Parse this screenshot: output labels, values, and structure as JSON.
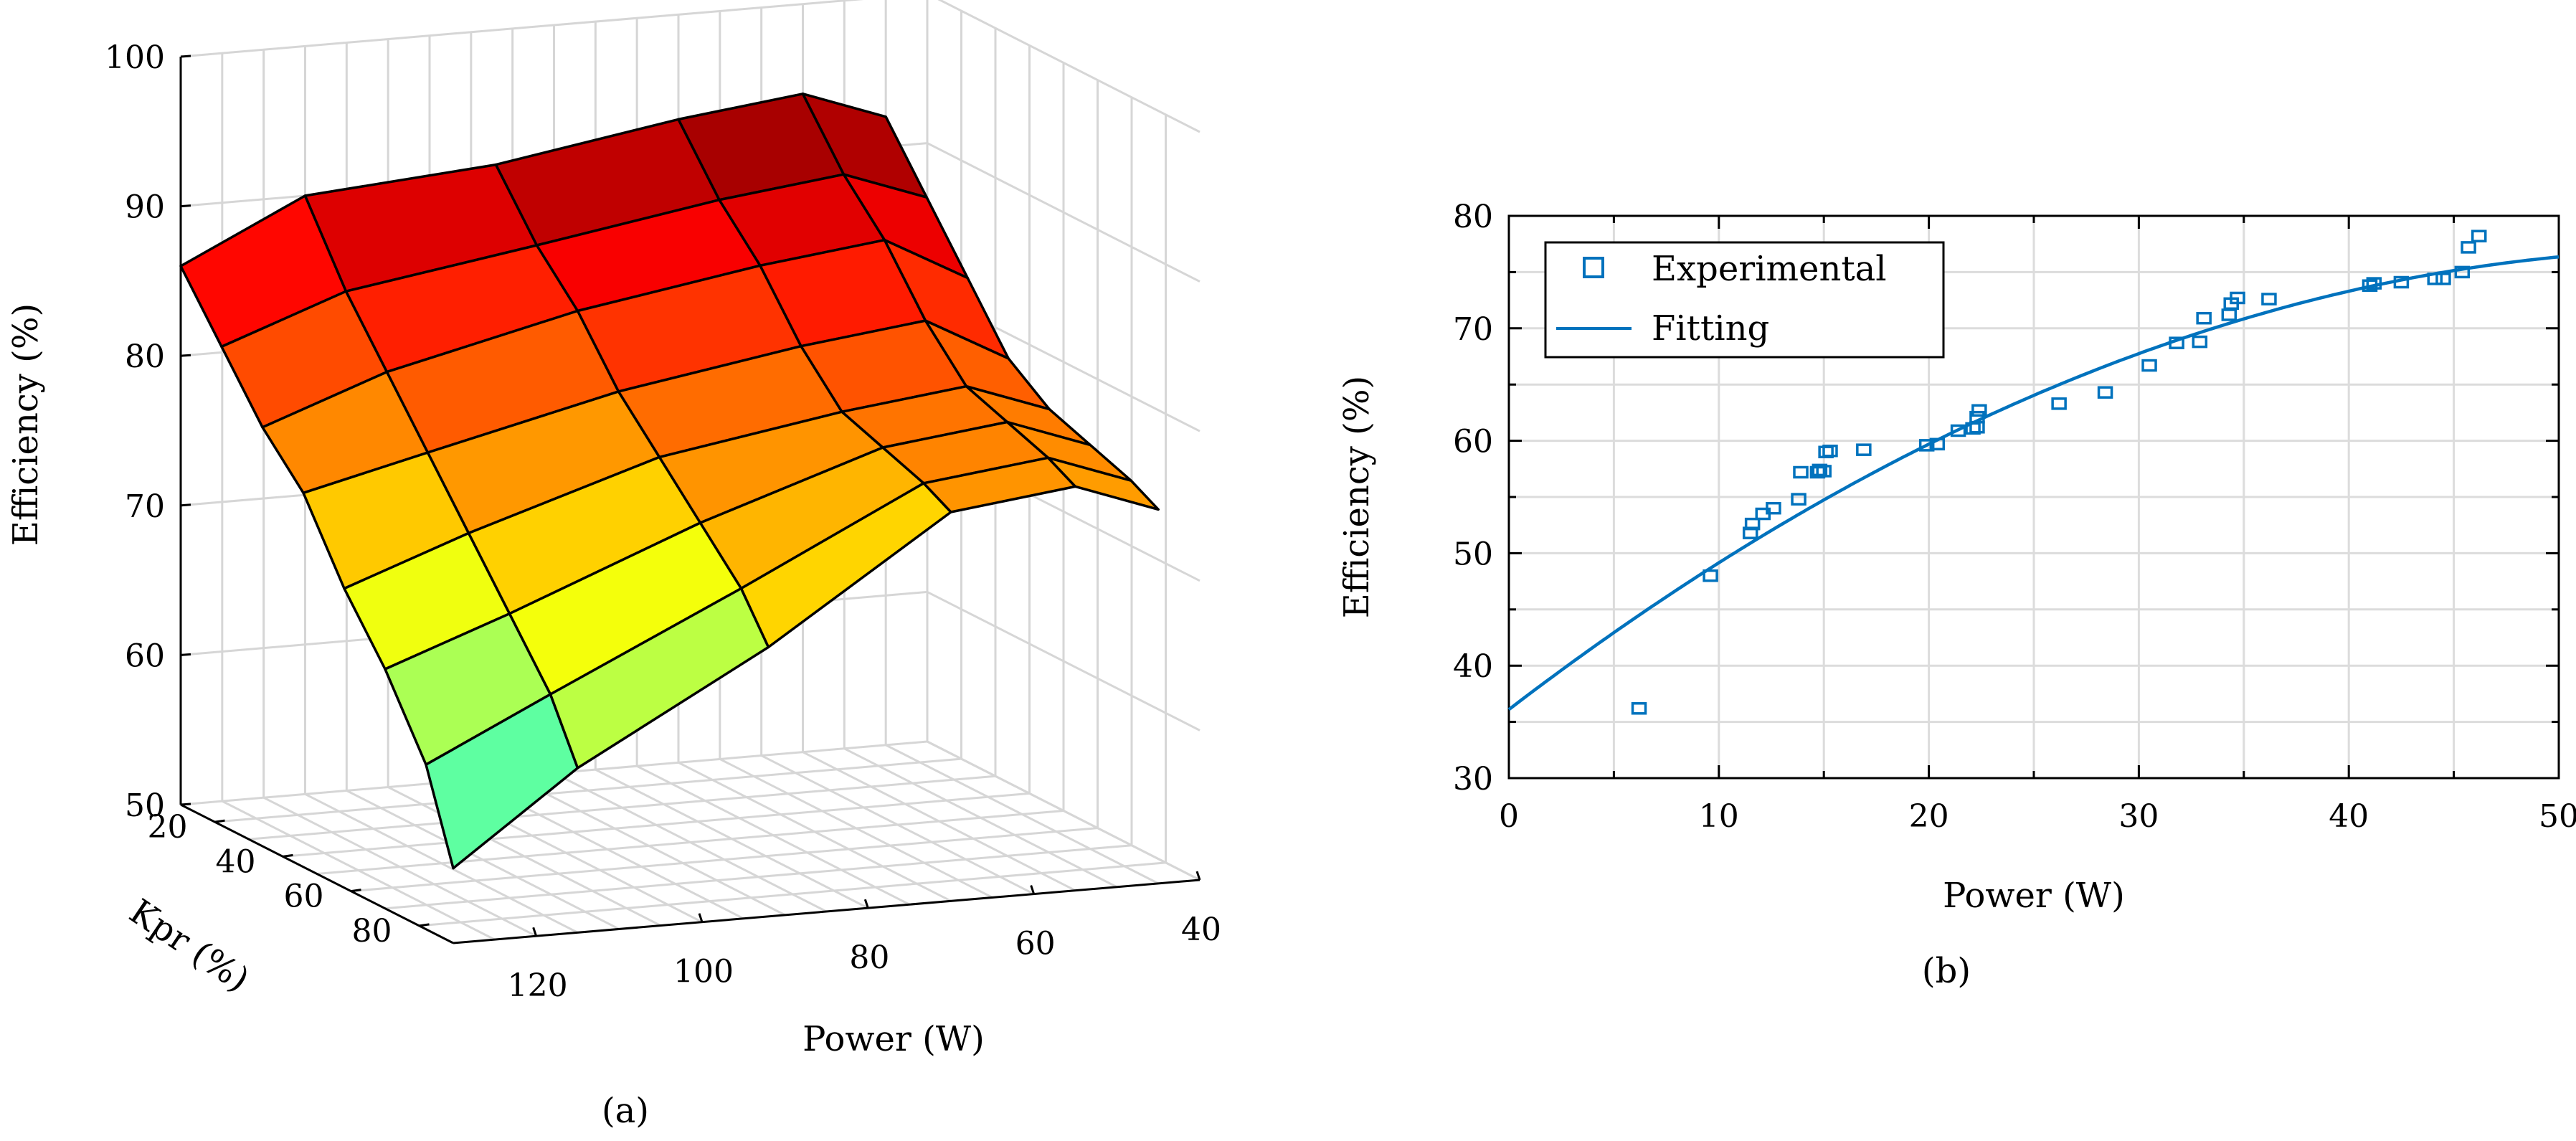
{
  "chart_data": [
    {
      "type": "surface",
      "caption": "(a)",
      "xlabel": "Power (W)",
      "ylabel": "Kpr (%)",
      "zlabel": "Efficiency (%)",
      "x_ticks": [
        "120",
        "100",
        "80",
        "60",
        "40"
      ],
      "y_ticks": [
        "20",
        "40",
        "60",
        "80"
      ],
      "z_ticks": [
        "100",
        "90",
        "80",
        "70",
        "60",
        "50"
      ],
      "xlim": [
        40,
        130
      ],
      "ylim": [
        10,
        90
      ],
      "zlim": [
        50,
        100
      ],
      "grid": true,
      "colormap": "jet",
      "kpr": [
        10,
        22,
        34,
        46,
        58,
        70,
        82,
        90
      ],
      "power": [
        130,
        115,
        92,
        70,
        55,
        45
      ],
      "efficiency": [
        [
          86,
          90,
          91,
          93,
          94,
          92
        ],
        [
          82,
          85,
          87,
          89,
          90,
          88
        ],
        [
          78,
          81,
          84,
          86,
          87,
          84
        ],
        [
          75,
          77,
          80,
          82,
          83,
          80
        ],
        [
          70,
          73,
          77,
          79,
          80,
          78
        ],
        [
          66,
          69,
          74,
          78,
          79,
          77
        ],
        [
          61,
          65,
          71,
          77,
          78,
          76
        ],
        [
          55,
          61,
          68,
          76,
          77,
          75
        ]
      ]
    },
    {
      "type": "scatter",
      "caption": "(b)",
      "xlabel": "Power (W)",
      "ylabel": "Efficiency (%)",
      "xlim": [
        0,
        50
      ],
      "ylim": [
        30,
        80
      ],
      "x_ticks": [
        "0",
        "10",
        "20",
        "30",
        "40",
        "50"
      ],
      "y_ticks": [
        "30",
        "40",
        "50",
        "60",
        "70",
        "80"
      ],
      "grid": true,
      "legend_position": "top-left",
      "color": "#0072bd",
      "series": [
        {
          "name": "Experimental",
          "marker": "square",
          "points": [
            [
              6.2,
              36.2
            ],
            [
              9.6,
              48.0
            ],
            [
              11.5,
              51.8
            ],
            [
              11.6,
              52.6
            ],
            [
              12.1,
              53.5
            ],
            [
              12.6,
              54.0
            ],
            [
              13.8,
              54.8
            ],
            [
              13.9,
              57.2
            ],
            [
              14.7,
              57.2
            ],
            [
              14.8,
              57.4
            ],
            [
              15.0,
              57.3
            ],
            [
              15.1,
              59.0
            ],
            [
              15.3,
              59.1
            ],
            [
              16.9,
              59.2
            ],
            [
              19.9,
              59.6
            ],
            [
              20.4,
              59.7
            ],
            [
              21.4,
              60.9
            ],
            [
              22.1,
              61.1
            ],
            [
              22.3,
              61.2
            ],
            [
              22.3,
              62.1
            ],
            [
              22.4,
              62.7
            ],
            [
              26.2,
              63.3
            ],
            [
              28.4,
              64.3
            ],
            [
              30.5,
              66.7
            ],
            [
              31.8,
              68.7
            ],
            [
              32.9,
              68.8
            ],
            [
              33.1,
              70.9
            ],
            [
              34.3,
              71.2
            ],
            [
              34.4,
              72.2
            ],
            [
              34.7,
              72.7
            ],
            [
              36.2,
              72.6
            ],
            [
              41.0,
              73.8
            ],
            [
              41.2,
              74.0
            ],
            [
              42.5,
              74.1
            ],
            [
              44.1,
              74.4
            ],
            [
              44.5,
              74.4
            ],
            [
              45.4,
              75.0
            ],
            [
              45.7,
              77.2
            ],
            [
              46.2,
              78.2
            ]
          ]
        },
        {
          "name": "Fitting",
          "type": "line",
          "polynomial": [
            36.1,
            1.43,
            -0.0125
          ]
        }
      ]
    }
  ]
}
